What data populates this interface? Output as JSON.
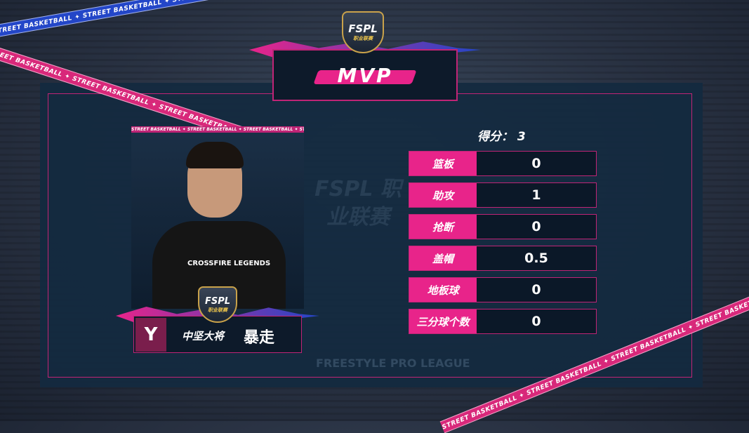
{
  "tape_text": "STREET BASKETBALL ✦ STREET BASKETBALL ✦ STREET BASKETBALL ✦ STREET BASKETBALL ✦ STREET BASKETBALL ✦ STREET BASKETBALL ✦",
  "logo": {
    "text": "FSPL",
    "sub": "职业联赛"
  },
  "header": {
    "title": "MVP"
  },
  "watermark": {
    "main": "FSPL 职业联赛",
    "sub": "FREESTYLE PRO LEAGUE"
  },
  "player": {
    "jersey_text": "CROSSFIRE LEGENDS",
    "team_logo": "Y",
    "title": "中坚大将",
    "name": "暴走"
  },
  "stats": {
    "score_label": "得分：",
    "score": "3",
    "rows": [
      {
        "label": "篮板",
        "value": "0"
      },
      {
        "label": "助攻",
        "value": "1"
      },
      {
        "label": "抢断",
        "value": "0"
      },
      {
        "label": "盖帽",
        "value": "0.5"
      },
      {
        "label": "地板球",
        "value": "0"
      },
      {
        "label": "三分球个数",
        "value": "0"
      }
    ]
  },
  "colors": {
    "accent": "#e8248a",
    "panel": "#132a40",
    "tape_blue": "#2346c8"
  }
}
